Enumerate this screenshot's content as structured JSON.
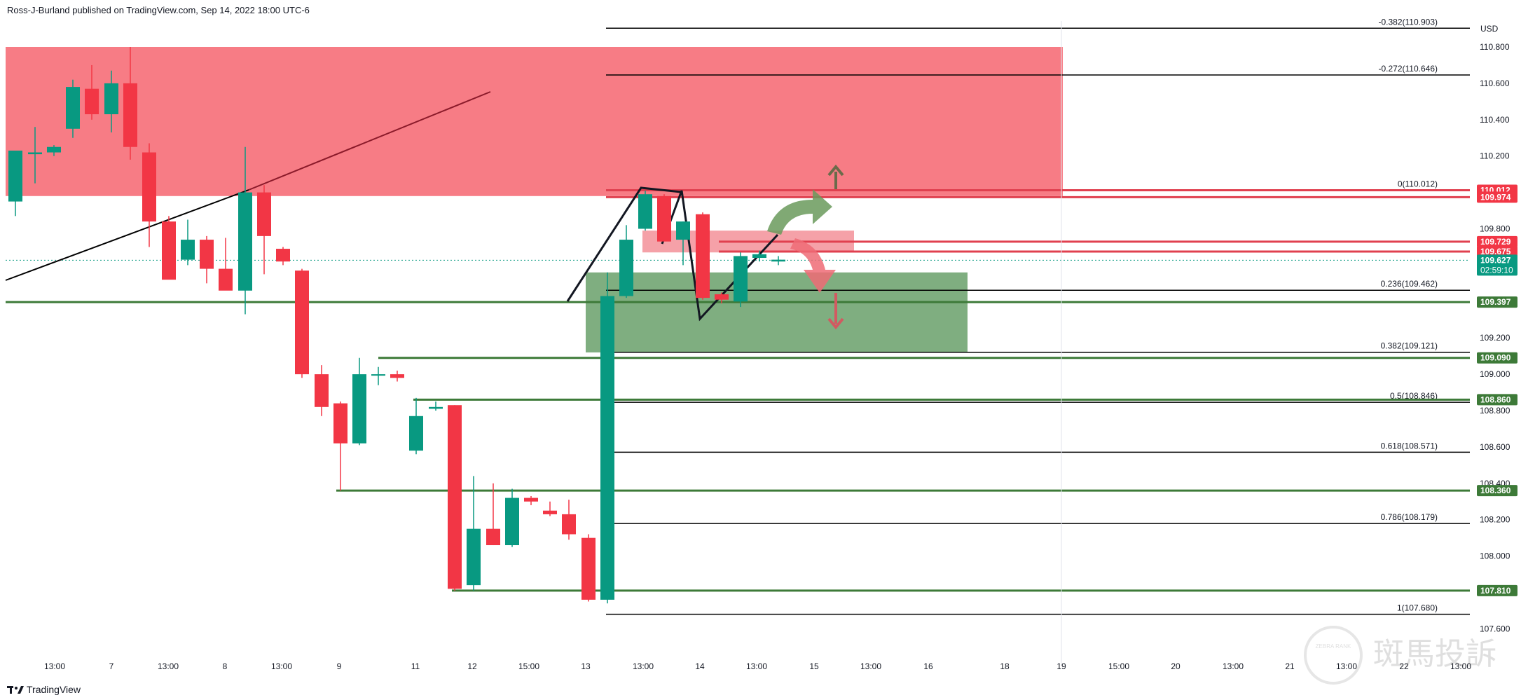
{
  "header": {
    "published_by": "Ross-J-Burland published on TradingView.com, Sep 14, 2022 18:00 UTC-6"
  },
  "footer": {
    "brand": "TradingView"
  },
  "watermark": {
    "text": "斑馬投訴",
    "badge_text": "ZEBRA RANK"
  },
  "colors": {
    "bull": "#089981",
    "bear": "#f23645",
    "supply_zone": "#f77c85",
    "demand_zone": "#7fae80",
    "level_green": "#3d7a38",
    "fib_line": "#000000"
  },
  "chart_data": {
    "type": "candlestick",
    "title": "",
    "currency": "USD",
    "y_axis": {
      "ticks": [
        "110.800",
        "110.600",
        "110.400",
        "110.200",
        "109.800",
        "109.200",
        "109.000",
        "108.800",
        "108.600",
        "108.400",
        "108.200",
        "108.000",
        "107.600"
      ],
      "range": [
        107.5,
        111.0
      ]
    },
    "x_axis": {
      "ticks": [
        "13:00",
        "7",
        "13:00",
        "8",
        "13:00",
        "9",
        "11",
        "12",
        "15:00",
        "13",
        "13:00",
        "14",
        "13:00",
        "15",
        "13:00",
        "16",
        "18",
        "19",
        "15:00",
        "20",
        "13:00",
        "21",
        "13:00",
        "22",
        "13:00"
      ]
    },
    "candles": [
      {
        "o": 109.95,
        "h": 110.22,
        "l": 109.87,
        "c": 110.23
      },
      {
        "o": 110.21,
        "h": 110.36,
        "l": 110.05,
        "c": 110.22
      },
      {
        "o": 110.22,
        "h": 110.26,
        "l": 110.2,
        "c": 110.25
      },
      {
        "o": 110.35,
        "h": 110.62,
        "l": 110.3,
        "c": 110.58
      },
      {
        "o": 110.57,
        "h": 110.7,
        "l": 110.4,
        "c": 110.43
      },
      {
        "o": 110.43,
        "h": 110.67,
        "l": 110.33,
        "c": 110.6
      },
      {
        "o": 110.6,
        "h": 110.8,
        "l": 110.18,
        "c": 110.25
      },
      {
        "o": 110.22,
        "h": 110.27,
        "l": 109.7,
        "c": 109.84
      },
      {
        "o": 109.84,
        "h": 109.87,
        "l": 109.53,
        "c": 109.52
      },
      {
        "o": 109.63,
        "h": 109.85,
        "l": 109.6,
        "c": 109.74
      },
      {
        "o": 109.74,
        "h": 109.76,
        "l": 109.5,
        "c": 109.58
      },
      {
        "o": 109.58,
        "h": 109.75,
        "l": 109.48,
        "c": 109.46
      },
      {
        "o": 109.46,
        "h": 110.25,
        "l": 109.33,
        "c": 110.0
      },
      {
        "o": 110.0,
        "h": 110.04,
        "l": 109.55,
        "c": 109.76
      },
      {
        "o": 109.69,
        "h": 109.7,
        "l": 109.6,
        "c": 109.62
      },
      {
        "o": 109.57,
        "h": 109.58,
        "l": 108.98,
        "c": 109.0
      },
      {
        "o": 109.0,
        "h": 109.05,
        "l": 108.77,
        "c": 108.82
      },
      {
        "o": 108.84,
        "h": 108.85,
        "l": 108.36,
        "c": 108.62
      },
      {
        "o": 108.62,
        "h": 109.09,
        "l": 108.61,
        "c": 109.0
      },
      {
        "o": 109.0,
        "h": 109.04,
        "l": 108.94,
        "c": 109.0
      },
      {
        "o": 109.0,
        "h": 109.02,
        "l": 108.96,
        "c": 108.98
      },
      {
        "o": 108.58,
        "h": 108.87,
        "l": 108.56,
        "c": 108.77
      },
      {
        "o": 108.81,
        "h": 108.85,
        "l": 108.8,
        "c": 108.82
      },
      {
        "o": 108.83,
        "h": 108.83,
        "l": 107.81,
        "c": 107.82
      },
      {
        "o": 107.84,
        "h": 108.44,
        "l": 107.81,
        "c": 108.15
      },
      {
        "o": 108.15,
        "h": 108.4,
        "l": 108.06,
        "c": 108.06
      },
      {
        "o": 108.06,
        "h": 108.37,
        "l": 108.05,
        "c": 108.32
      },
      {
        "o": 108.32,
        "h": 108.33,
        "l": 108.28,
        "c": 108.3
      },
      {
        "o": 108.25,
        "h": 108.3,
        "l": 108.22,
        "c": 108.23
      },
      {
        "o": 108.23,
        "h": 108.31,
        "l": 108.09,
        "c": 108.12
      },
      {
        "o": 108.1,
        "h": 108.12,
        "l": 107.75,
        "c": 107.76
      },
      {
        "o": 107.76,
        "h": 109.56,
        "l": 107.74,
        "c": 109.43
      },
      {
        "o": 109.43,
        "h": 109.82,
        "l": 109.42,
        "c": 109.74
      },
      {
        "o": 109.8,
        "h": 110.01,
        "l": 109.79,
        "c": 109.99
      },
      {
        "o": 109.98,
        "h": 109.99,
        "l": 109.74,
        "c": 109.73
      },
      {
        "o": 109.74,
        "h": 109.84,
        "l": 109.6,
        "c": 109.84
      },
      {
        "o": 109.88,
        "h": 109.89,
        "l": 109.41,
        "c": 109.42
      },
      {
        "o": 109.44,
        "h": 109.45,
        "l": 109.39,
        "c": 109.41
      },
      {
        "o": 109.4,
        "h": 109.67,
        "l": 109.37,
        "c": 109.65
      },
      {
        "o": 109.64,
        "h": 109.68,
        "l": 109.62,
        "c": 109.66
      },
      {
        "o": 109.62,
        "h": 109.65,
        "l": 109.6,
        "c": 109.63
      }
    ],
    "fib_levels": [
      {
        "label": "-0.382(110.903)",
        "price": 110.903
      },
      {
        "label": "-0.272(110.646)",
        "price": 110.646
      },
      {
        "label": "0(110.012)",
        "price": 110.012
      },
      {
        "label": "0.236(109.462)",
        "price": 109.462
      },
      {
        "label": "0.382(109.121)",
        "price": 109.121
      },
      {
        "label": "0.5(108.846)",
        "price": 108.846
      },
      {
        "label": "0.618(108.571)",
        "price": 108.571
      },
      {
        "label": "0.786(108.179)",
        "price": 108.179
      },
      {
        "label": "1(107.680)",
        "price": 107.68
      }
    ],
    "price_tags": [
      {
        "text": "110.012",
        "price": 110.012,
        "color": "#f23645"
      },
      {
        "text": "109.974",
        "price": 109.974,
        "color": "#f23645"
      },
      {
        "text": "109.729",
        "price": 109.729,
        "color": "#f23645"
      },
      {
        "text": "109.675",
        "price": 109.675,
        "color": "#f23645"
      },
      {
        "text": "109.627",
        "price": 109.627,
        "color": "#089981",
        "sub": "02:59:10"
      },
      {
        "text": "109.397",
        "price": 109.397,
        "color": "#3d7a38"
      },
      {
        "text": "109.090",
        "price": 109.09,
        "color": "#3d7a38"
      },
      {
        "text": "108.860",
        "price": 108.86,
        "color": "#3d7a38"
      },
      {
        "text": "108.360",
        "price": 108.36,
        "color": "#3d7a38"
      },
      {
        "text": "107.810",
        "price": 107.81,
        "color": "#3d7a38"
      }
    ],
    "zones": [
      {
        "name": "supply",
        "price_top": 110.8,
        "price_bottom": 109.98,
        "color": "#f77c85"
      },
      {
        "name": "minor-supply",
        "price_top": 109.79,
        "price_bottom": 109.67,
        "color": "#f5a1a8"
      },
      {
        "name": "demand",
        "price_top": 109.56,
        "price_bottom": 109.12,
        "color": "#7fae80"
      }
    ],
    "grid": false,
    "legend": "none"
  }
}
